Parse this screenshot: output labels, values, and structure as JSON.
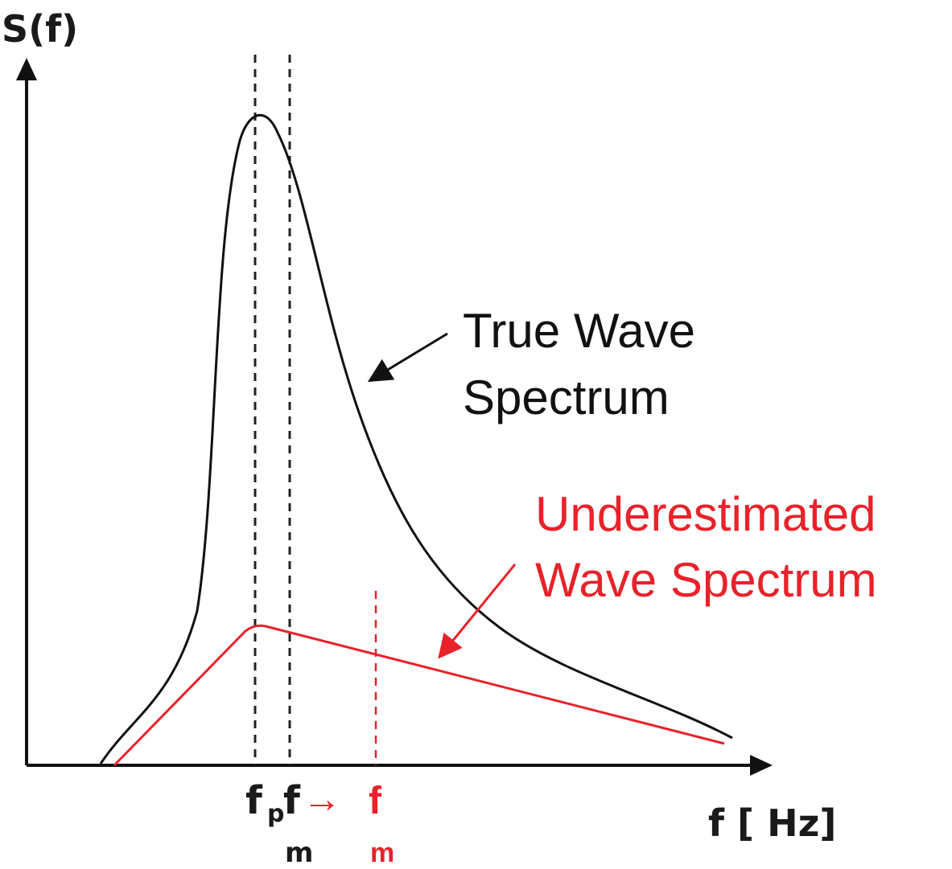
{
  "colors": {
    "axis": "#111111",
    "true_spectrum": "#111111",
    "underestimated_spectrum": "#e8222a"
  },
  "axes": {
    "y_label": "S(f)",
    "x_label": "f [ Hz]"
  },
  "annotations": {
    "true_wave_line1": "True Wave",
    "true_wave_line2": "Spectrum",
    "under_line1": "Underestimated",
    "under_line2": "Wave Spectrum"
  },
  "ticks": {
    "fp_main": "f",
    "fp_sub": "p",
    "fm_main": "f",
    "fm_sub": "m",
    "fm_shift_arrow": "→",
    "fm_red_main": "f",
    "fm_red_sub": "m"
  }
}
